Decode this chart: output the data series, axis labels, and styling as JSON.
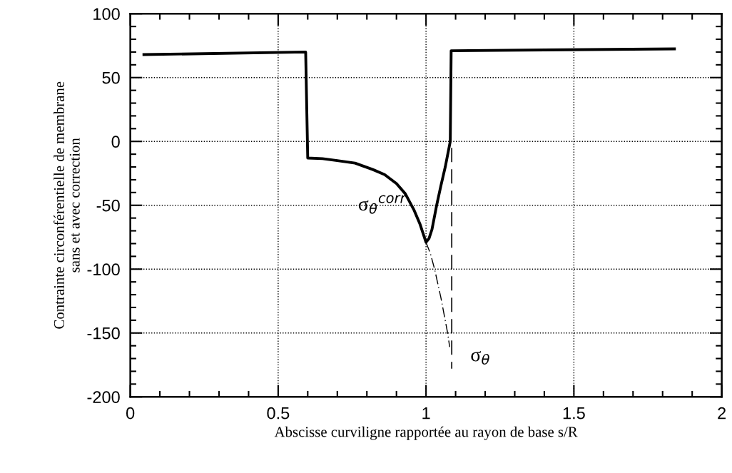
{
  "chart_data": {
    "type": "line",
    "xlabel": "Abscisse curviligne rapportée au rayon de base s/R",
    "ylabel": "Contrainte circonférentielle de membrane\nsans et avec correction",
    "xlim": [
      0,
      2
    ],
    "ylim": [
      -200,
      100
    ],
    "xticks": [
      0,
      0.5,
      1,
      1.5,
      2
    ],
    "yticks": [
      -200,
      -150,
      -100,
      -50,
      0,
      50,
      100
    ],
    "grid": true,
    "series": [
      {
        "color": "#000000",
        "line_style": "solid",
        "x": [
          0.046,
          0.593,
          0.6,
          0.65,
          0.7,
          0.76,
          0.82,
          0.86,
          0.9,
          0.93,
          0.96,
          0.98,
          1.0,
          1.01,
          1.02,
          1.036,
          1.05,
          1.065,
          1.082,
          1.085,
          1.84
        ],
        "values": [
          68,
          70,
          -13,
          -13.5,
          -15,
          -17,
          -22,
          -26,
          -33,
          -41,
          -54,
          -65,
          -79,
          -76,
          -69,
          -50,
          -35,
          -20,
          0,
          71,
          72.5
        ]
      },
      {
        "color": "#000000",
        "line_style": "dashdot",
        "x": [
          1.0,
          1.015,
          1.029,
          1.05,
          1.073,
          1.08
        ],
        "values": [
          -79,
          -88,
          -100,
          -122,
          -150,
          -161
        ]
      },
      {
        "color": "#000000",
        "line_style": "dashed",
        "x": [
          1.087,
          1.087
        ],
        "values": [
          -5,
          -178
        ]
      }
    ],
    "annotations": [
      "σ$_{θ}$$^{corr}$",
      "σ$_{θ}$"
    ]
  }
}
